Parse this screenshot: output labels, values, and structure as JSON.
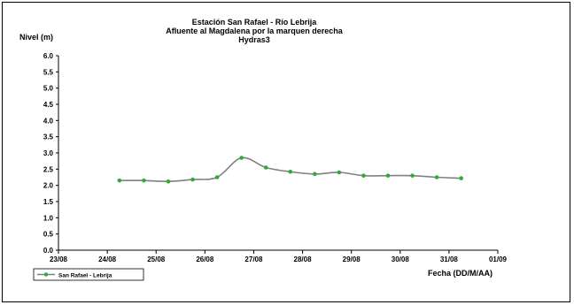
{
  "chart_data": {
    "type": "line",
    "title": [
      "Estación San Rafael - Río Lebrija",
      "Afluente al Magdalena por la marquen derecha",
      "Hydras3"
    ],
    "ylabel": "Nivel (m)",
    "xlabel": "Fecha (DD/M/AA)",
    "ylim": [
      0,
      6
    ],
    "yticks": [
      "0.0",
      "0.5",
      "1.0",
      "1.5",
      "2.0",
      "2.5",
      "3.0",
      "3.5",
      "4.0",
      "4.5",
      "5.0",
      "5.5",
      "6.0"
    ],
    "xlim": [
      "23/08",
      "01/09"
    ],
    "xticks": [
      "23/08",
      "24/08",
      "25/08",
      "26/08",
      "27/08",
      "28/08",
      "29/08",
      "30/08",
      "31/08",
      "01/09"
    ],
    "grid": false,
    "legend_position": "bottom-left",
    "series": [
      {
        "name": "San Rafael - Lebrija",
        "color": "#808080",
        "marker_color": "#33aa33",
        "x": [
          24.25,
          24.75,
          25.25,
          25.75,
          26.25,
          26.75,
          27.25,
          27.75,
          28.25,
          28.75,
          29.25,
          29.75,
          30.25,
          30.75,
          31.25
        ],
        "x_labels": [
          "24/08",
          "24/08",
          "25/08",
          "25/08",
          "26/08",
          "26/08",
          "27/08",
          "27/08",
          "28/08",
          "28/08",
          "29/08",
          "29/08",
          "30/08",
          "30/08",
          "31/08"
        ],
        "values": [
          2.15,
          2.15,
          2.12,
          2.18,
          2.25,
          2.85,
          2.55,
          2.42,
          2.35,
          2.4,
          2.3,
          2.3,
          2.3,
          2.25,
          2.22
        ]
      }
    ]
  }
}
